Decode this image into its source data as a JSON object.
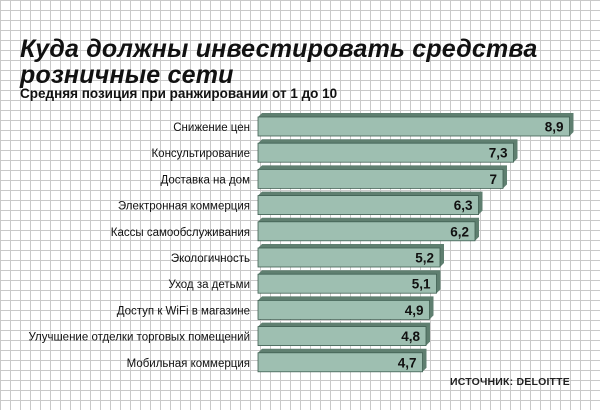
{
  "title": "Куда должны инвестировать средства розничные сети",
  "subtitle": "Средняя позиция при ранжировании от 1 до 10",
  "source": "ИСТОЧНИК: DELOITTE",
  "colors": {
    "bar_face": "#9ebfb1",
    "bar_shadow": "#5f7f70",
    "bar_stroke": "#3f5f52",
    "grid": "#c9c9c9"
  },
  "chart_data": {
    "type": "bar",
    "orientation": "horizontal",
    "categories": [
      "Снижение цен",
      "Консультирование",
      "Доставка на дом",
      "Электронная коммерция",
      "Кассы самообслуживания",
      "Экологичность",
      "Уход за детьми",
      "Доступ к WiFi в магазине",
      "Улучшение отделки торговых помещений",
      "Мобильная коммерция"
    ],
    "values": [
      8.9,
      7.3,
      7,
      6.3,
      6.2,
      5.2,
      5.1,
      4.9,
      4.8,
      4.7
    ],
    "value_labels": [
      "8,9",
      "7,3",
      "7",
      "6,3",
      "6,2",
      "5,2",
      "5,1",
      "4,9",
      "4,8",
      "4,7"
    ],
    "title": "Куда должны инвестировать средства розничные сети",
    "subtitle": "Средняя позиция при ранжировании от 1 до 10",
    "grid": true
  }
}
